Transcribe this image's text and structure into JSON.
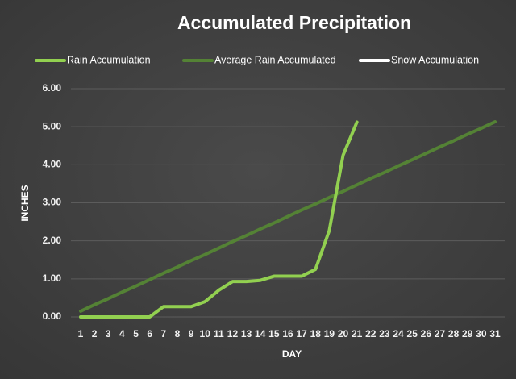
{
  "chart_data": {
    "type": "line",
    "title": "Accumulated Precipitation",
    "xlabel": "DAY",
    "ylabel": "INCHES",
    "categories": [
      "1",
      "2",
      "3",
      "4",
      "5",
      "6",
      "7",
      "8",
      "9",
      "10",
      "11",
      "12",
      "13",
      "14",
      "15",
      "16",
      "17",
      "18",
      "19",
      "20",
      "21",
      "22",
      "23",
      "24",
      "25",
      "26",
      "27",
      "28",
      "29",
      "30",
      "31"
    ],
    "series": [
      {
        "name": "Rain Accumulation",
        "color": "#92d050",
        "values": [
          0,
          0,
          0,
          0,
          0,
          0,
          0.27,
          0.27,
          0.27,
          0.4,
          0.7,
          0.93,
          0.93,
          0.96,
          1.07,
          1.07,
          1.07,
          1.25,
          2.27,
          4.25,
          5.12,
          null,
          null,
          null,
          null,
          null,
          null,
          null,
          null,
          null,
          null
        ]
      },
      {
        "name": "Average Rain Accumulated",
        "color": "#548235",
        "values": [
          0.15,
          0.32,
          0.48,
          0.65,
          0.81,
          0.98,
          1.15,
          1.31,
          1.48,
          1.64,
          1.81,
          1.98,
          2.14,
          2.31,
          2.47,
          2.64,
          2.81,
          2.97,
          3.14,
          3.3,
          3.47,
          3.64,
          3.8,
          3.97,
          4.13,
          4.3,
          4.47,
          4.63,
          4.8,
          4.96,
          5.13
        ]
      },
      {
        "name": "Snow Accumulation",
        "color": "#ffffff",
        "values": [
          null,
          null,
          null,
          null,
          null,
          null,
          null,
          null,
          null,
          null,
          null,
          null,
          null,
          null,
          null,
          null,
          null,
          null,
          null,
          null,
          null,
          null,
          null,
          null,
          null,
          null,
          null,
          null,
          null,
          null,
          null
        ]
      }
    ],
    "ylim": [
      0,
      6
    ],
    "yticks": [
      {
        "value": 0,
        "label": "0.00"
      },
      {
        "value": 1,
        "label": "1.00"
      },
      {
        "value": 2,
        "label": "2.00"
      },
      {
        "value": 3,
        "label": "3.00"
      },
      {
        "value": 4,
        "label": "4.00"
      },
      {
        "value": 5,
        "label": "5.00"
      },
      {
        "value": 6,
        "label": "6.00"
      }
    ],
    "grid": true,
    "legend": "top"
  }
}
